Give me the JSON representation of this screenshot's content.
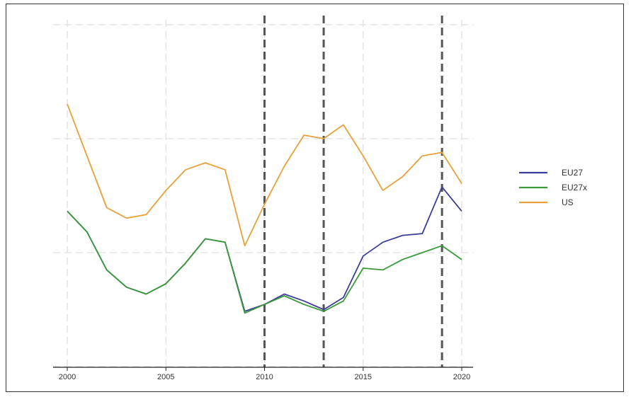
{
  "chart_data": {
    "type": "line",
    "title": "",
    "xlabel": "",
    "ylabel": "",
    "xlim": [
      2000,
      2020
    ],
    "ylim": [
      0,
      10
    ],
    "x": [
      2000,
      2001,
      2002,
      2003,
      2004,
      2005,
      2006,
      2007,
      2008,
      2009,
      2010,
      2011,
      2012,
      2013,
      2014,
      2015,
      2016,
      2017,
      2018,
      2019,
      2020
    ],
    "x_ticks": [
      "2000",
      "2005",
      "2010",
      "2015",
      "2020"
    ],
    "y_ticks": [
      0,
      3.3,
      6.6,
      9.9
    ],
    "y_ticks_labeled": false,
    "grid": true,
    "legend_position": "right",
    "vlines": [
      {
        "x": 2010,
        "style": "dashed"
      },
      {
        "x": 2013,
        "style": "dashed"
      },
      {
        "x": 2019,
        "style": "dashed"
      }
    ],
    "series": [
      {
        "name": "EU27",
        "color": "#3c3d99",
        "values": [
          4.5,
          3.9,
          2.8,
          2.3,
          2.1,
          2.4,
          3.0,
          3.7,
          3.6,
          1.6,
          1.8,
          2.1,
          1.9,
          1.65,
          2.0,
          3.2,
          3.6,
          3.8,
          3.85,
          5.2,
          4.5
        ]
      },
      {
        "name": "EU27x",
        "color": "#3a9a3a",
        "values": [
          4.5,
          3.9,
          2.8,
          2.3,
          2.1,
          2.4,
          3.0,
          3.7,
          3.6,
          1.55,
          1.8,
          2.05,
          1.8,
          1.6,
          1.9,
          2.85,
          2.8,
          3.1,
          3.3,
          3.5,
          3.1
        ]
      },
      {
        "name": "US",
        "color": "#e8a13a",
        "values": [
          7.6,
          6.1,
          4.6,
          4.3,
          4.4,
          5.1,
          5.7,
          5.9,
          5.7,
          3.5,
          4.7,
          5.8,
          6.7,
          6.6,
          7.0,
          6.1,
          5.1,
          5.5,
          6.1,
          6.2,
          5.3
        ]
      }
    ]
  }
}
